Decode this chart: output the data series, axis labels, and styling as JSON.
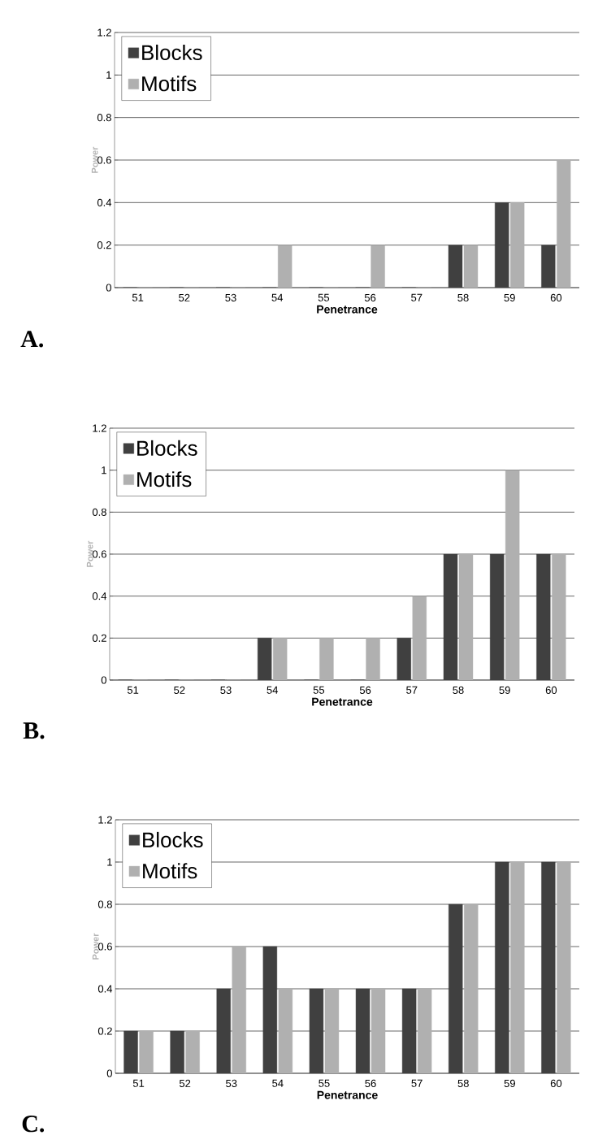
{
  "chart_data": [
    {
      "type": "bar",
      "xlabel": "Penetrance",
      "ylabel": "Power",
      "categories": [
        "51",
        "52",
        "53",
        "54",
        "55",
        "56",
        "57",
        "58",
        "59",
        "60"
      ],
      "series": [
        {
          "name": "Blocks",
          "color": "#404040",
          "values": [
            0,
            0,
            0,
            0,
            0,
            0,
            0,
            0.2,
            0.4,
            0.2
          ]
        },
        {
          "name": "Motifs",
          "color": "#b0b0b0",
          "values": [
            0,
            0,
            0,
            0.2,
            0,
            0.2,
            0,
            0.2,
            0.4,
            0.6
          ]
        }
      ],
      "ylim": [
        0,
        1.2
      ],
      "yticks": [
        0,
        0.2,
        0.4,
        0.6,
        0.8,
        1,
        1.2
      ],
      "grid": "y",
      "legend": "top left",
      "annotations": [
        "A."
      ]
    },
    {
      "type": "bar",
      "xlabel": "Penetrance",
      "ylabel": "Power",
      "categories": [
        "51",
        "52",
        "53",
        "54",
        "55",
        "56",
        "57",
        "58",
        "59",
        "60"
      ],
      "series": [
        {
          "name": "Blocks",
          "color": "#404040",
          "values": [
            0,
            0,
            0,
            0.2,
            0,
            0,
            0.2,
            0.6,
            0.6,
            0.6
          ]
        },
        {
          "name": "Motifs",
          "color": "#b0b0b0",
          "values": [
            0,
            0,
            0,
            0.2,
            0.2,
            0.2,
            0.4,
            0.6,
            1,
            0.6
          ]
        }
      ],
      "ylim": [
        0,
        1.2
      ],
      "yticks": [
        0,
        0.2,
        0.4,
        0.6,
        0.8,
        1,
        1.2
      ],
      "grid": "y",
      "legend": "top left",
      "annotations": [
        "B."
      ]
    },
    {
      "type": "bar",
      "xlabel": "Penetrance",
      "ylabel": "Power",
      "categories": [
        "51",
        "52",
        "53",
        "54",
        "55",
        "56",
        "57",
        "58",
        "59",
        "60"
      ],
      "series": [
        {
          "name": "Blocks",
          "color": "#404040",
          "values": [
            0.2,
            0.2,
            0.4,
            0.6,
            0.4,
            0.4,
            0.4,
            0.8,
            1,
            1
          ]
        },
        {
          "name": "Motifs",
          "color": "#b0b0b0",
          "values": [
            0.2,
            0.2,
            0.6,
            0.4,
            0.4,
            0.4,
            0.4,
            0.8,
            1,
            1
          ]
        }
      ],
      "ylim": [
        0,
        1.2
      ],
      "yticks": [
        0,
        0.2,
        0.4,
        0.6,
        0.8,
        1,
        1.2
      ],
      "grid": "y",
      "legend": "top left",
      "annotations": [
        "C."
      ]
    }
  ]
}
